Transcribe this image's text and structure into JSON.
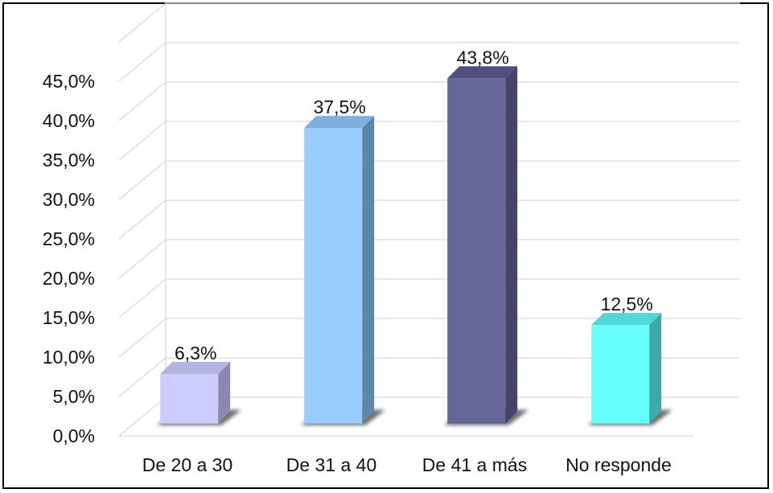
{
  "chart_data": {
    "type": "bar",
    "categories": [
      "De 20 a 30",
      "De 31 a 40",
      "De 41 a más",
      "No responde"
    ],
    "values": [
      6.3,
      37.5,
      43.8,
      12.5
    ],
    "data_labels": [
      "6,3%",
      "37,5%",
      "43,8%",
      "12,5%"
    ],
    "ytick_labels": [
      "0,0%",
      "5,0%",
      "10,0%",
      "15,0%",
      "20,0%",
      "25,0%",
      "30,0%",
      "35,0%",
      "40,0%",
      "45,0%"
    ],
    "ytick_values": [
      0,
      5,
      10,
      15,
      20,
      25,
      30,
      35,
      40,
      45
    ],
    "ylim": [
      0,
      50
    ],
    "grid": true,
    "style_3d": true,
    "legend": "none",
    "title": "",
    "xlabel": "",
    "ylabel": "",
    "colors": {
      "bars": [
        "#ccccff",
        "#99ccff",
        "#666699",
        "#66ffff"
      ],
      "bar_sides": [
        "#8a8ab0",
        "#5f85a8",
        "#44446a",
        "#40a8a8"
      ],
      "bar_tops": [
        "#b4b4e0",
        "#7fb0dc",
        "#505080",
        "#50d8d8"
      ],
      "grid": "#d9d9d9",
      "floor": "#d9d9d9",
      "shadow": "#555555"
    }
  }
}
